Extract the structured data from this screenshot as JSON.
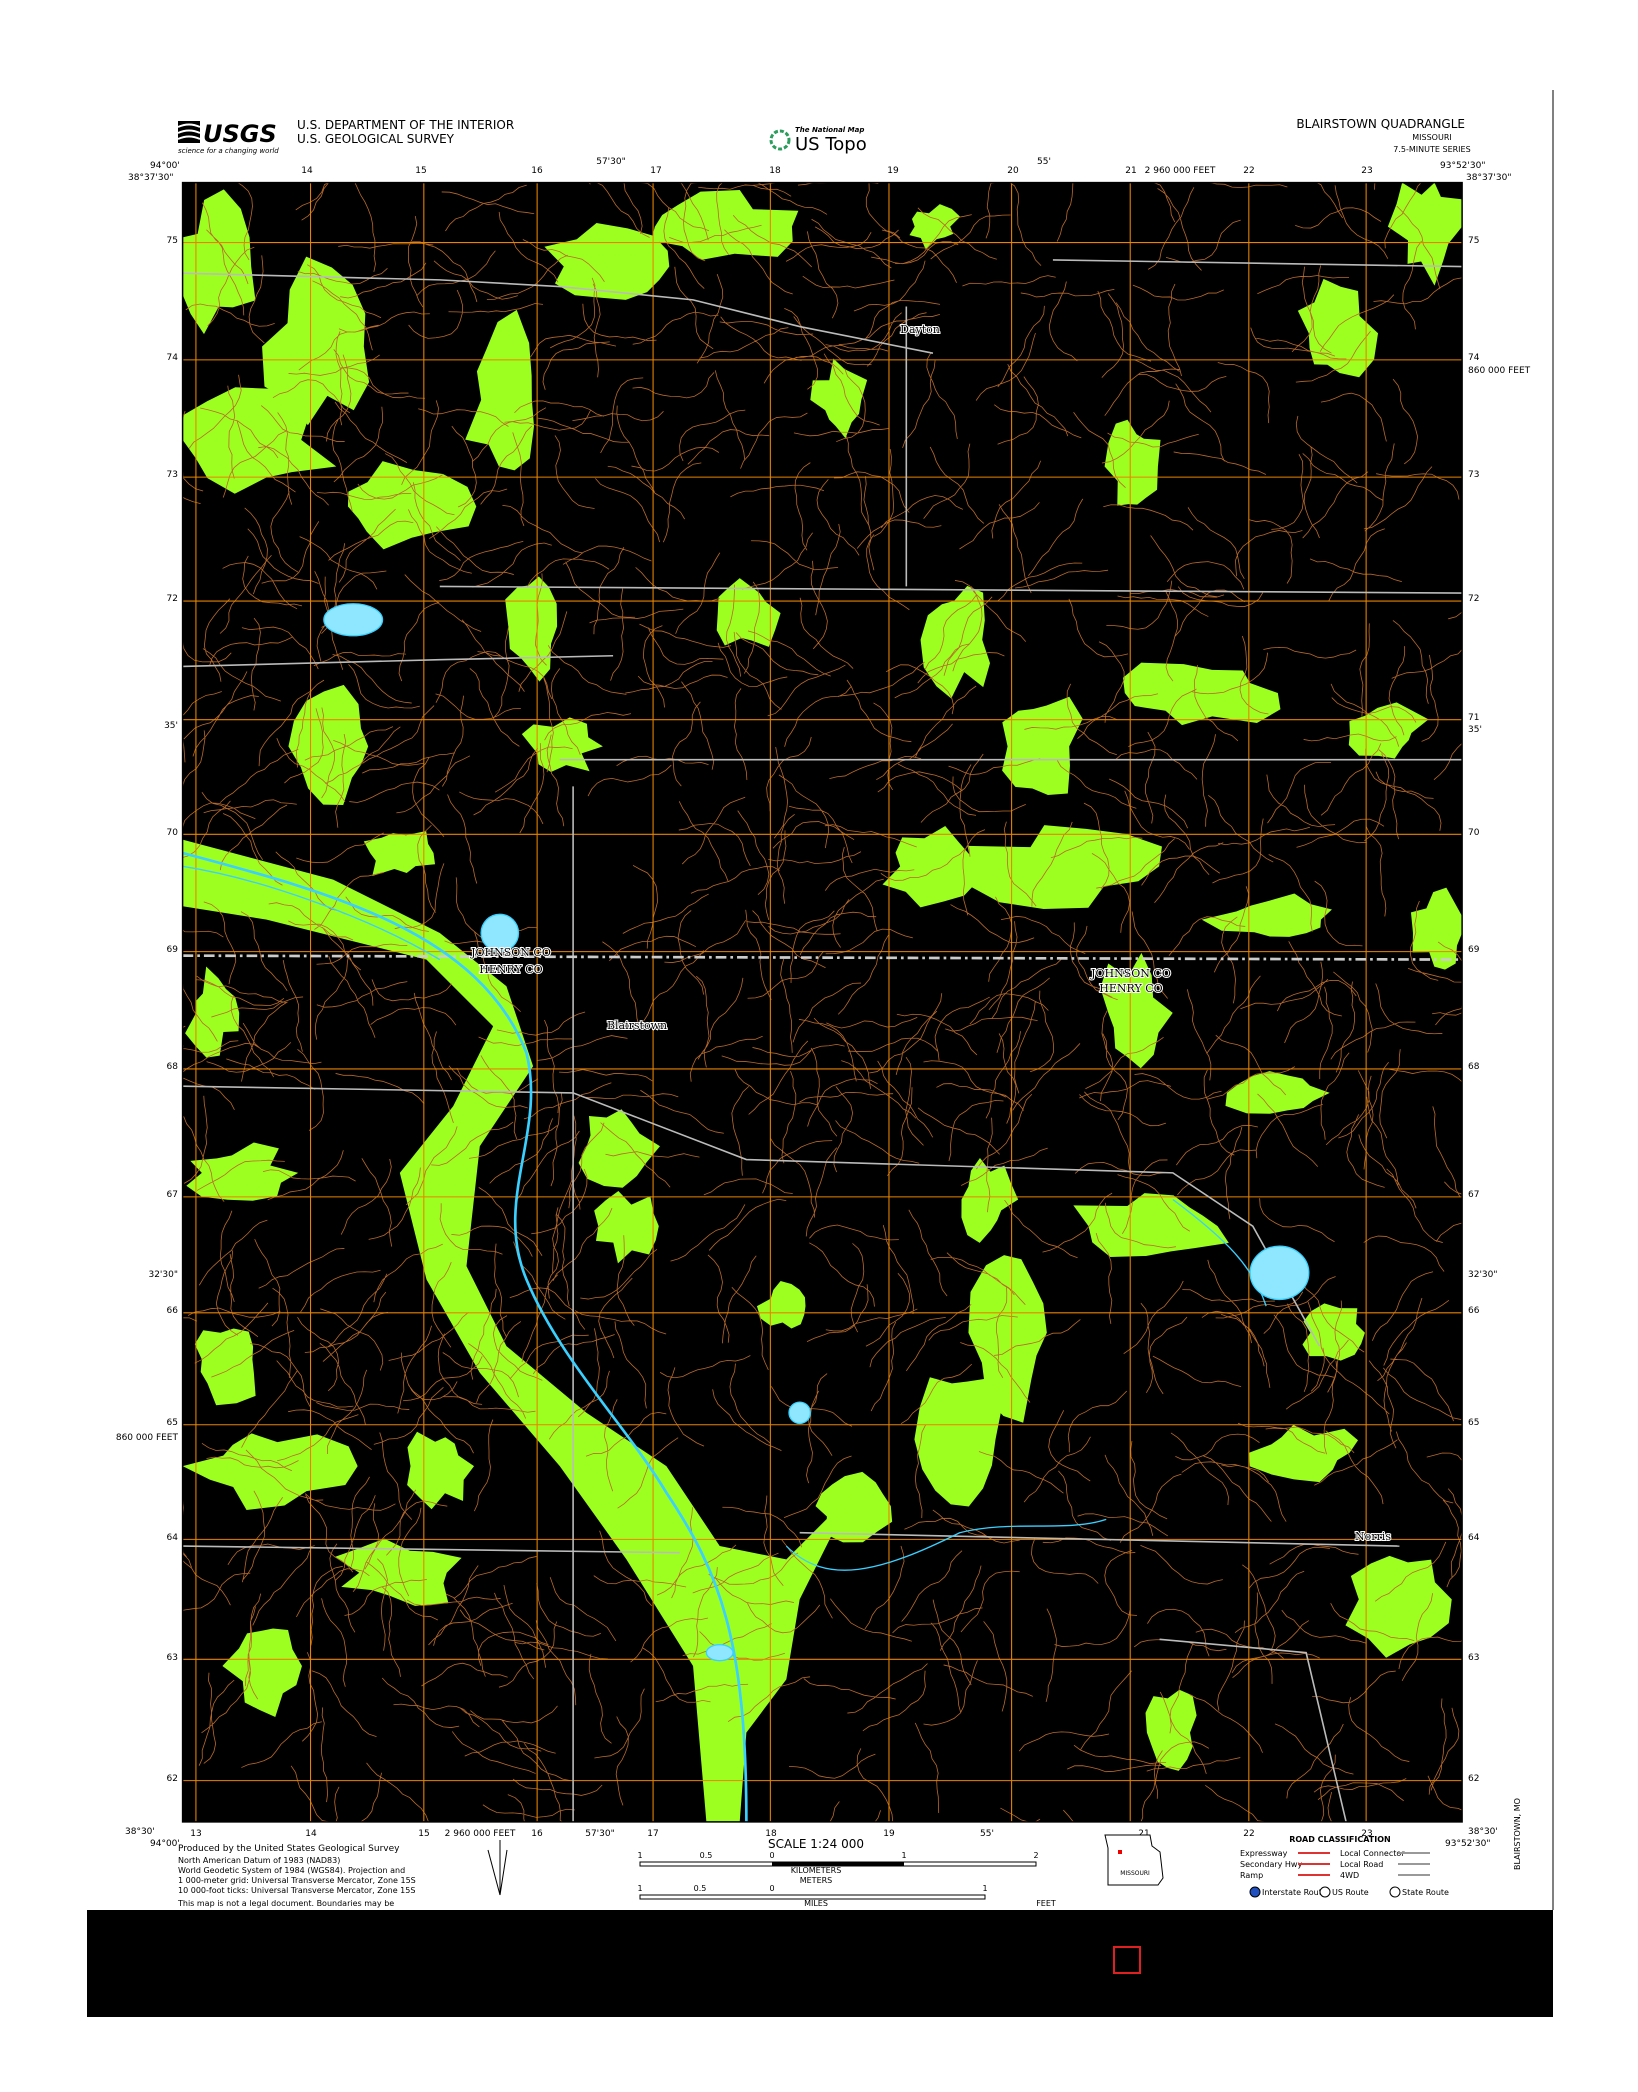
{
  "header": {
    "agency_logo": "USGS",
    "agency_tagline": "science for a changing world",
    "department": "U.S. DEPARTMENT OF THE INTERIOR",
    "survey": "U.S. GEOLOGICAL SURVEY",
    "national_map": "The National Map",
    "product": "US Topo",
    "quadrangle": "BLAIRSTOWN QUADRANGLE",
    "state": "MISSOURI",
    "series": "7.5-MINUTE SERIES"
  },
  "corners": {
    "top_left_lon": "94°00'",
    "top_left_lat": "38°37'30\"",
    "top_right_lon": "93°52'30\"",
    "top_right_lat": "38°37'30\"",
    "bottom_left_lat": "38°30'",
    "bottom_left_lon": "94°00'",
    "bottom_right_lat": "38°30'",
    "bottom_right_lon": "93°52'30\""
  },
  "top_ticks": [
    "14",
    "15",
    "16",
    "57'30\"",
    "17",
    "18",
    "19",
    "20",
    "55'",
    "21",
    "2 960 000 FEET",
    "22",
    "23"
  ],
  "bottom_ticks": [
    "13",
    "14",
    "15",
    "2 960 000 FEET",
    "16",
    "57'30\"",
    "17",
    "18",
    "19",
    "55'",
    "21",
    "22",
    "23"
  ],
  "left_ticks": [
    "75",
    "74",
    "73",
    "72",
    "35'",
    "70",
    "69",
    "68",
    "67",
    "32'30\"",
    "66",
    "65",
    "860 000 FEET",
    "64",
    "63",
    "62"
  ],
  "right_ticks": [
    "75",
    "74",
    "860 000 FEET",
    "73",
    "72",
    "71",
    "35'",
    "70",
    "69",
    "68",
    "67",
    "32'30\"",
    "66",
    "65",
    "64",
    "63",
    "62"
  ],
  "places": [
    "Dayton",
    "Blairstown",
    "Norris",
    "JOHNSON CO",
    "HENRY CO",
    "JOHNSON CO",
    "HENRY CO"
  ],
  "footer": {
    "produced": "Produced by the United States Geological Survey",
    "credits": [
      "North American Datum of 1983 (NAD83)",
      "World Geodetic System of 1984 (WGS84). Projection and",
      "1 000-meter grid: Universal Transverse Mercator, Zone 15S",
      "10 000-foot ticks: Universal Transverse Mercator, Zone 15S"
    ],
    "legal": "This map is not a legal document. Boundaries may be",
    "scale": "SCALE 1:24 000",
    "km_labels": [
      "1",
      "0.5",
      "0",
      "1",
      "2"
    ],
    "units": [
      "KILOMETERS",
      "METERS",
      "MILES",
      "FEET"
    ],
    "mile_labels": [
      "1",
      "0.5",
      "0",
      "1"
    ],
    "inset": "MISSOURI",
    "road_classification": {
      "title": "ROAD CLASSIFICATION",
      "items": [
        "Expressway",
        "Secondary Hwy",
        "Ramp",
        "Local Connector",
        "Local Road",
        "4WD",
        "Interstate Route",
        "US Route",
        "State Route"
      ]
    },
    "code": "BLAIRSTOWN, MO"
  }
}
